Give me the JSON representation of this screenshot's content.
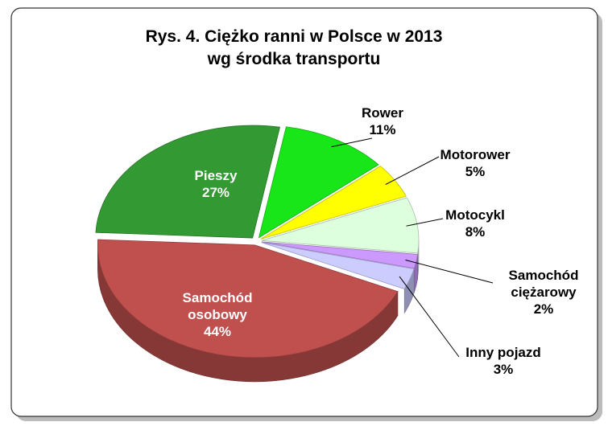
{
  "chart_data": {
    "type": "pie",
    "title": "Rys. 4. Ciężko ranni w Polsce w 2013",
    "subtitle": "wg środka transportu",
    "categories": [
      "Rower",
      "Motorower",
      "Motocykl",
      "Samochód ciężarowy",
      "Inny pojazd",
      "Samochód osobowy",
      "Pieszy"
    ],
    "values": [
      11,
      5,
      8,
      2,
      3,
      44,
      27
    ],
    "value_labels": [
      "11%",
      "5%",
      "8%",
      "2%",
      "3%",
      "44%",
      "27%"
    ],
    "colors": [
      "#19e619",
      "#ffff00",
      "#ddffdd",
      "#cc99ff",
      "#ccccff",
      "#c0504d",
      "#339933"
    ]
  }
}
